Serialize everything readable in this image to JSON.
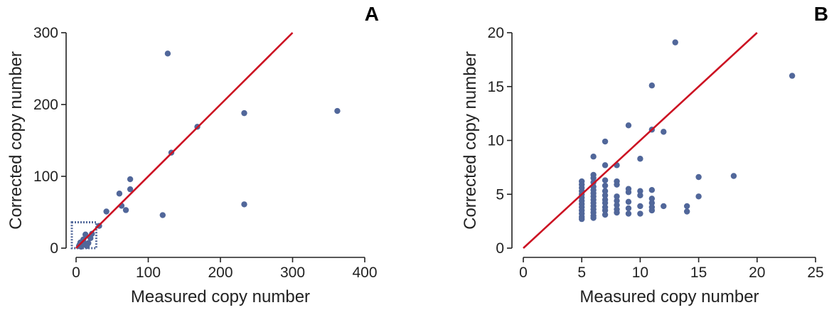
{
  "colors": {
    "points": "#51679a",
    "fit_line": "#cc1122",
    "axis": "#222222"
  },
  "chart_data": [
    {
      "type": "scatter",
      "panel_label": "A",
      "xlabel": "Measured copy number",
      "ylabel": "Corrected copy number",
      "xlim": [
        0,
        400
      ],
      "ylim": [
        0,
        300
      ],
      "xticks": [
        0,
        100,
        200,
        300,
        400
      ],
      "yticks": [
        0,
        100,
        200,
        300
      ],
      "grid": false,
      "fit_line": {
        "x": [
          0,
          300
        ],
        "y": [
          0,
          300
        ]
      },
      "highlight_box": {
        "x": [
          0,
          28
        ],
        "y": [
          0,
          36
        ]
      },
      "points": [
        {
          "x": 127,
          "y": 271
        },
        {
          "x": 233,
          "y": 188
        },
        {
          "x": 362,
          "y": 191
        },
        {
          "x": 168,
          "y": 169
        },
        {
          "x": 132,
          "y": 133
        },
        {
          "x": 75,
          "y": 96
        },
        {
          "x": 60,
          "y": 76
        },
        {
          "x": 75,
          "y": 82
        },
        {
          "x": 63,
          "y": 59
        },
        {
          "x": 69,
          "y": 53
        },
        {
          "x": 42,
          "y": 51
        },
        {
          "x": 120,
          "y": 46
        },
        {
          "x": 233,
          "y": 61
        },
        {
          "x": 32,
          "y": 31
        },
        {
          "x": 22,
          "y": 20
        },
        {
          "x": 13,
          "y": 19
        },
        {
          "x": 10,
          "y": 12
        },
        {
          "x": 6,
          "y": 8
        },
        {
          "x": 5,
          "y": 5
        },
        {
          "x": 8,
          "y": 4
        },
        {
          "x": 12,
          "y": 6
        },
        {
          "x": 17,
          "y": 7
        },
        {
          "x": 20,
          "y": 14
        },
        {
          "x": 7,
          "y": 2
        },
        {
          "x": 15,
          "y": 3
        },
        {
          "x": 4,
          "y": 3
        }
      ]
    },
    {
      "type": "scatter",
      "panel_label": "B",
      "xlabel": "Measured copy number",
      "ylabel": "Corrected copy number",
      "xlim": [
        0,
        25
      ],
      "ylim": [
        0,
        20
      ],
      "xticks": [
        0,
        5,
        10,
        15,
        20,
        25
      ],
      "yticks": [
        0,
        5,
        10,
        15,
        20
      ],
      "grid": false,
      "fit_line": {
        "x": [
          0,
          20
        ],
        "y": [
          0,
          20
        ]
      },
      "points": [
        {
          "x": 13,
          "y": 19.1
        },
        {
          "x": 23,
          "y": 16.0
        },
        {
          "x": 11,
          "y": 15.1
        },
        {
          "x": 9,
          "y": 11.4
        },
        {
          "x": 11,
          "y": 11.0
        },
        {
          "x": 12,
          "y": 10.8
        },
        {
          "x": 7,
          "y": 9.9
        },
        {
          "x": 6,
          "y": 8.5
        },
        {
          "x": 10,
          "y": 8.3
        },
        {
          "x": 7,
          "y": 7.7
        },
        {
          "x": 8,
          "y": 7.7
        },
        {
          "x": 18,
          "y": 6.7
        },
        {
          "x": 15,
          "y": 6.6
        },
        {
          "x": 6,
          "y": 6.8
        },
        {
          "x": 6,
          "y": 6.5
        },
        {
          "x": 5,
          "y": 6.2
        },
        {
          "x": 7,
          "y": 6.3
        },
        {
          "x": 8,
          "y": 6.2
        },
        {
          "x": 5,
          "y": 5.9
        },
        {
          "x": 6,
          "y": 6.1
        },
        {
          "x": 7,
          "y": 5.8
        },
        {
          "x": 8,
          "y": 5.9
        },
        {
          "x": 9,
          "y": 5.5
        },
        {
          "x": 10,
          "y": 5.3
        },
        {
          "x": 11,
          "y": 5.4
        },
        {
          "x": 5,
          "y": 5.6
        },
        {
          "x": 6,
          "y": 5.7
        },
        {
          "x": 5,
          "y": 5.3
        },
        {
          "x": 6,
          "y": 5.4
        },
        {
          "x": 7,
          "y": 5.3
        },
        {
          "x": 9,
          "y": 5.2
        },
        {
          "x": 15,
          "y": 4.8
        },
        {
          "x": 10,
          "y": 4.9
        },
        {
          "x": 11,
          "y": 4.6
        },
        {
          "x": 5,
          "y": 5.0
        },
        {
          "x": 6,
          "y": 5.1
        },
        {
          "x": 7,
          "y": 4.9
        },
        {
          "x": 8,
          "y": 4.8
        },
        {
          "x": 5,
          "y": 4.7
        },
        {
          "x": 6,
          "y": 4.8
        },
        {
          "x": 7,
          "y": 4.5
        },
        {
          "x": 8,
          "y": 4.4
        },
        {
          "x": 9,
          "y": 4.3
        },
        {
          "x": 11,
          "y": 4.2
        },
        {
          "x": 5,
          "y": 4.4
        },
        {
          "x": 6,
          "y": 4.5
        },
        {
          "x": 5,
          "y": 4.1
        },
        {
          "x": 6,
          "y": 4.2
        },
        {
          "x": 7,
          "y": 4.2
        },
        {
          "x": 8,
          "y": 4.0
        },
        {
          "x": 12,
          "y": 3.9
        },
        {
          "x": 10,
          "y": 3.9
        },
        {
          "x": 14,
          "y": 3.9
        },
        {
          "x": 5,
          "y": 3.8
        },
        {
          "x": 6,
          "y": 3.9
        },
        {
          "x": 7,
          "y": 3.8
        },
        {
          "x": 9,
          "y": 3.7
        },
        {
          "x": 11,
          "y": 3.8
        },
        {
          "x": 5,
          "y": 3.5
        },
        {
          "x": 6,
          "y": 3.6
        },
        {
          "x": 7,
          "y": 3.5
        },
        {
          "x": 8,
          "y": 3.6
        },
        {
          "x": 11,
          "y": 3.5
        },
        {
          "x": 14,
          "y": 3.4
        },
        {
          "x": 5,
          "y": 3.2
        },
        {
          "x": 6,
          "y": 3.3
        },
        {
          "x": 8,
          "y": 3.3
        },
        {
          "x": 9,
          "y": 3.2
        },
        {
          "x": 10,
          "y": 3.2
        },
        {
          "x": 5,
          "y": 2.9
        },
        {
          "x": 6,
          "y": 3.0
        },
        {
          "x": 7,
          "y": 3.1
        },
        {
          "x": 5,
          "y": 2.7
        },
        {
          "x": 6,
          "y": 2.8
        }
      ]
    }
  ]
}
